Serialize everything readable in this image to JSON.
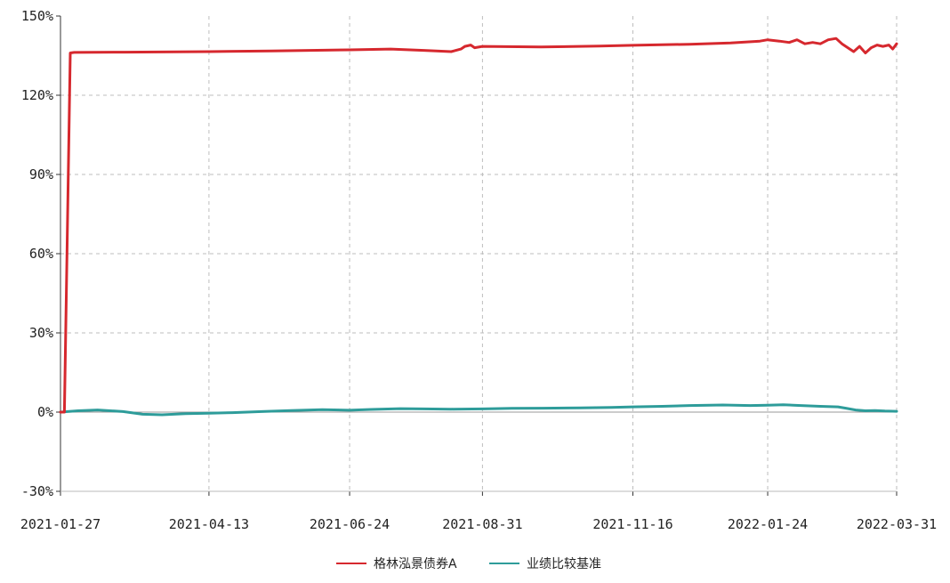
{
  "chart_data": {
    "type": "line",
    "title": "",
    "xlabel": "",
    "ylabel": "",
    "ylim": [
      -0.3,
      1.5
    ],
    "y_format": "percent",
    "y_ticks": [
      -0.3,
      0,
      0.3,
      0.6,
      0.9,
      1.2,
      1.5
    ],
    "y_tick_labels": [
      "-30%",
      "0%",
      "30%",
      "60%",
      "90%",
      "120%",
      "150%"
    ],
    "x_range": [
      "2021-01-27",
      "2022-03-31"
    ],
    "x_ticks": [
      "2021-01-27",
      "2021-04-13",
      "2021-06-24",
      "2021-08-31",
      "2021-11-16",
      "2022-01-24",
      "2022-03-31"
    ],
    "grid": true,
    "legend_position": "bottom-center",
    "series": [
      {
        "name": "格林泓景债券A",
        "color": "#d6282e",
        "x": [
          "2021-01-27",
          "2021-01-29",
          "2021-02-01",
          "2021-02-03",
          "2021-03-01",
          "2021-04-13",
          "2021-05-15",
          "2021-06-24",
          "2021-07-15",
          "2021-08-01",
          "2021-08-15",
          "2021-08-20",
          "2021-08-22",
          "2021-08-25",
          "2021-08-27",
          "2021-08-31",
          "2021-09-30",
          "2021-10-30",
          "2021-11-16",
          "2021-12-15",
          "2022-01-05",
          "2022-01-20",
          "2022-01-24",
          "2022-01-30",
          "2022-02-04",
          "2022-02-08",
          "2022-02-12",
          "2022-02-16",
          "2022-02-20",
          "2022-02-24",
          "2022-02-28",
          "2022-03-03",
          "2022-03-06",
          "2022-03-09",
          "2022-03-12",
          "2022-03-15",
          "2022-03-18",
          "2022-03-21",
          "2022-03-24",
          "2022-03-27",
          "2022-03-29",
          "2022-03-31"
        ],
        "values": [
          0.0,
          0.0,
          1.36,
          1.362,
          1.363,
          1.365,
          1.368,
          1.372,
          1.375,
          1.37,
          1.365,
          1.375,
          1.385,
          1.39,
          1.38,
          1.385,
          1.383,
          1.386,
          1.389,
          1.393,
          1.398,
          1.405,
          1.41,
          1.405,
          1.4,
          1.41,
          1.395,
          1.4,
          1.395,
          1.41,
          1.415,
          1.395,
          1.38,
          1.365,
          1.385,
          1.36,
          1.38,
          1.39,
          1.385,
          1.39,
          1.375,
          1.395
        ]
      },
      {
        "name": "业绩比较基准",
        "color": "#2e9c9a",
        "x": [
          "2021-01-27",
          "2021-02-05",
          "2021-02-15",
          "2021-02-28",
          "2021-03-10",
          "2021-03-20",
          "2021-04-01",
          "2021-04-13",
          "2021-04-25",
          "2021-05-10",
          "2021-05-25",
          "2021-06-10",
          "2021-06-24",
          "2021-07-05",
          "2021-07-20",
          "2021-08-01",
          "2021-08-15",
          "2021-08-31",
          "2021-09-15",
          "2021-10-01",
          "2021-10-20",
          "2021-11-05",
          "2021-11-16",
          "2021-12-01",
          "2021-12-15",
          "2022-01-01",
          "2022-01-15",
          "2022-01-24",
          "2022-02-01",
          "2022-02-10",
          "2022-02-20",
          "2022-03-01",
          "2022-03-05",
          "2022-03-10",
          "2022-03-15",
          "2022-03-20",
          "2022-03-25",
          "2022-03-31"
        ],
        "values": [
          0.0,
          0.005,
          0.008,
          0.002,
          -0.008,
          -0.01,
          -0.006,
          -0.004,
          -0.002,
          0.002,
          0.006,
          0.009,
          0.007,
          0.01,
          0.013,
          0.012,
          0.011,
          0.012,
          0.014,
          0.015,
          0.016,
          0.018,
          0.02,
          0.022,
          0.025,
          0.027,
          0.025,
          0.026,
          0.028,
          0.025,
          0.022,
          0.02,
          0.015,
          0.008,
          0.005,
          0.006,
          0.004,
          0.003
        ]
      }
    ]
  }
}
